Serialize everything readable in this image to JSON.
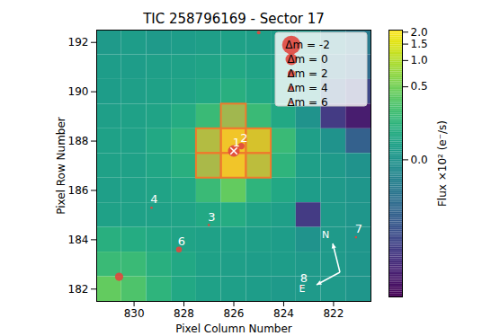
{
  "chart_data": {
    "type": "heatmap",
    "title": "TIC 258796169 - Sector 17",
    "x_label": "Pixel Column Number",
    "y_label": "Pixel Row Number",
    "xlim": [
      831.5,
      820.5
    ],
    "xticks": [
      830,
      828,
      826,
      824,
      822
    ],
    "ylim": [
      181.5,
      192.5
    ],
    "yticks": [
      182,
      184,
      186,
      188,
      190,
      192
    ],
    "columns": [
      831,
      830,
      829,
      828,
      827,
      826,
      825,
      824,
      823,
      822,
      821
    ],
    "rows": [
      192,
      191,
      190,
      189,
      188,
      187,
      186,
      185,
      184,
      183,
      182
    ],
    "cells": [
      [
        0.02,
        0.03,
        0.02,
        0.03,
        0.04,
        0.05,
        0.04,
        0.03,
        0.02,
        -0.05,
        -0.1
      ],
      [
        0.03,
        0.03,
        0.04,
        0.05,
        0.06,
        0.08,
        0.06,
        0.04,
        0.02,
        -0.1,
        -0.2
      ],
      [
        0.03,
        0.04,
        0.05,
        0.06,
        0.08,
        0.12,
        0.08,
        0.05,
        0.02,
        -0.3,
        -0.6
      ],
      [
        0.04,
        0.05,
        0.06,
        0.1,
        0.2,
        0.5,
        0.2,
        0.08,
        0.0,
        -0.8,
        -1.5
      ],
      [
        0.05,
        0.05,
        0.08,
        0.15,
        0.7,
        1.8,
        1.2,
        0.2,
        0.04,
        0.0,
        -0.3
      ],
      [
        0.05,
        0.05,
        0.07,
        0.12,
        0.6,
        1.8,
        0.8,
        0.15,
        0.04,
        0.02,
        0.0
      ],
      [
        0.04,
        0.05,
        0.06,
        0.08,
        0.2,
        0.4,
        0.15,
        0.08,
        0.03,
        0.02,
        0.01
      ],
      [
        0.05,
        0.05,
        0.05,
        0.06,
        0.08,
        0.1,
        0.06,
        0.04,
        -0.8,
        0.02,
        0.01
      ],
      [
        0.12,
        0.1,
        0.08,
        0.06,
        0.05,
        0.05,
        0.04,
        0.03,
        0.0,
        0.02,
        0.01
      ],
      [
        0.2,
        0.2,
        0.12,
        0.08,
        0.05,
        0.04,
        0.03,
        0.03,
        0.02,
        0.02,
        0.01
      ],
      [
        0.4,
        0.3,
        0.15,
        0.08,
        0.05,
        0.04,
        0.03,
        0.02,
        0.02,
        0.02,
        0.01
      ]
    ],
    "colorbar": {
      "label": "Flux ×10² (e⁻/s)",
      "range": [
        -2.5,
        2.1
      ],
      "ticks": [
        {
          "value": 0,
          "label": "0.0"
        },
        {
          "value": 0.5,
          "label": "0.5"
        },
        {
          "value": 1,
          "label": "1.0"
        },
        {
          "value": 1.5,
          "label": "1.5"
        },
        {
          "value": 2,
          "label": "2.0"
        }
      ]
    },
    "aperture": [
      [
        826,
        189
      ],
      [
        827,
        188
      ],
      [
        826,
        188
      ],
      [
        825,
        188
      ],
      [
        827,
        187
      ],
      [
        826,
        187
      ],
      [
        825,
        187
      ]
    ],
    "stars": [
      {
        "label": "1",
        "col": 826.0,
        "row": 187.6,
        "dm": 0,
        "marker": "x"
      },
      {
        "label": "2",
        "col": 825.7,
        "row": 187.8,
        "dm": 2.5
      },
      {
        "label": "3",
        "col": 827.0,
        "row": 184.6,
        "dm": 7
      },
      {
        "label": "4",
        "col": 829.3,
        "row": 185.3,
        "dm": 7
      },
      {
        "label": "6",
        "col": 828.2,
        "row": 183.6,
        "dm": 3
      },
      {
        "label": "7",
        "col": 821.1,
        "row": 184.1,
        "dm": 7
      },
      {
        "label": "8",
        "col": 823.3,
        "row": 182.1,
        "dm": 7
      },
      {
        "label": null,
        "col": 830.6,
        "row": 182.5,
        "dm": 1.5
      },
      {
        "label": null,
        "col": 825.0,
        "row": 192.4,
        "dm": 5
      }
    ],
    "size_legend": [
      {
        "value": -2,
        "label": "Δm = -2"
      },
      {
        "value": 0,
        "label": "Δm = 0"
      },
      {
        "value": 2,
        "label": "Δm = 2"
      },
      {
        "value": 4,
        "label": "Δm = 4"
      },
      {
        "value": 6,
        "label": "Δm = 6"
      }
    ],
    "compass": {
      "north": "N",
      "east": "E"
    }
  }
}
